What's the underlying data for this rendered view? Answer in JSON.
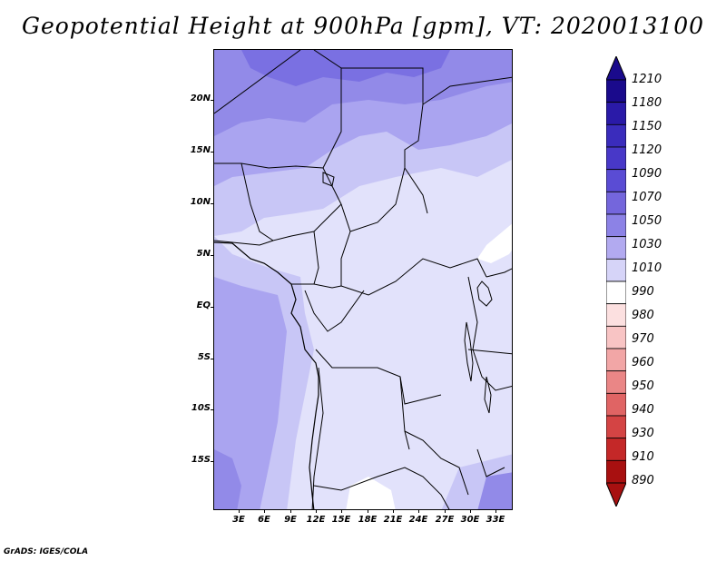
{
  "title": "Geopotential Height at 900hPa [gpm], VT: 2020013100",
  "credit": "GrADS: IGES/COLA",
  "map": {
    "variable": "Geopotential Height",
    "level": "900hPa",
    "units": "gpm",
    "valid_time": "2020013100",
    "lat_labels": [
      "20N",
      "15N",
      "10N",
      "5N",
      "EQ",
      "5S",
      "10S",
      "15S"
    ],
    "lon_labels": [
      "3E",
      "6E",
      "9E",
      "12E",
      "15E",
      "18E",
      "21E",
      "24E",
      "27E",
      "30E",
      "33E"
    ]
  },
  "colorbar": {
    "labels": [
      "1210",
      "1180",
      "1150",
      "1120",
      "1090",
      "1070",
      "1050",
      "1030",
      "1010",
      "990",
      "980",
      "970",
      "960",
      "950",
      "940",
      "930",
      "910",
      "890"
    ],
    "colors": [
      "#1a0a8c",
      "#2a1aa8",
      "#3a2cbc",
      "#4838c8",
      "#5a4cd4",
      "#7466dc",
      "#8c82e6",
      "#b2aaf0",
      "#d6d4f8",
      "#ffffff",
      "#fce0e0",
      "#f8c4c4",
      "#f2a6a6",
      "#ea8686",
      "#e06464",
      "#d44444",
      "#c42828",
      "#a81010"
    ]
  },
  "contours": {
    "c1090": "#7a70e2",
    "c1070": "#928ae8",
    "c1050": "#aaa4f0",
    "c1030": "#c8c6f6",
    "c1010": "#e2e2fb",
    "c990": "#ffffff"
  }
}
